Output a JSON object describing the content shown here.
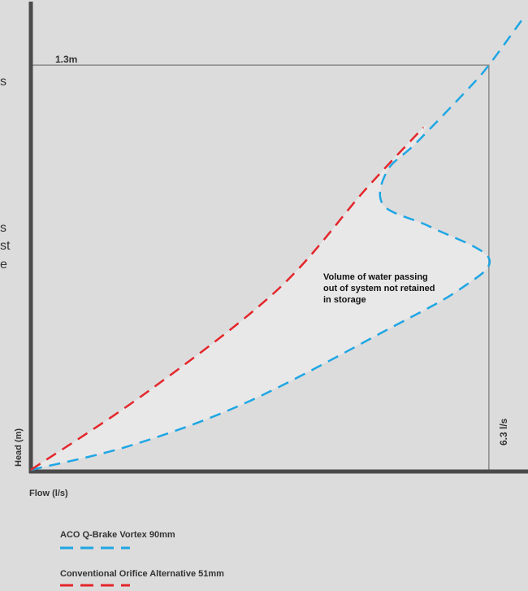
{
  "chart_data": {
    "type": "line",
    "xlabel": "Flow (l/s)",
    "ylabel": "Head (m)",
    "design_head": "1.3m",
    "design_flow": "6.3 l/s",
    "region_annotation": [
      "Volume of water passing",
      "out of system not retained",
      "in storage"
    ],
    "edge_fragments": [
      "s",
      "s",
      "st",
      "e"
    ],
    "grid": false,
    "legend_position": "bottom-left",
    "series": [
      {
        "name": "ACO Q-Brake Vortex 90mm",
        "color": "#1fa6e4",
        "style": "dashed",
        "points": [
          [
            0,
            0
          ],
          [
            1.4,
            0.08
          ],
          [
            3.0,
            0.22
          ],
          [
            4.9,
            0.45
          ],
          [
            5.9,
            0.58
          ],
          [
            6.3,
            0.68
          ],
          [
            5.5,
            0.78
          ],
          [
            4.85,
            0.85
          ],
          [
            4.9,
            0.96
          ],
          [
            5.3,
            1.05
          ],
          [
            6.0,
            1.22
          ],
          [
            6.3,
            1.3
          ],
          [
            6.8,
            1.46
          ]
        ]
      },
      {
        "name": "Conventional Orifice Alternative 51mm",
        "color": "#e4262b",
        "style": "dashed",
        "points": [
          [
            0,
            0
          ],
          [
            1.6,
            0.25
          ],
          [
            3.4,
            0.58
          ],
          [
            4.6,
            0.9
          ],
          [
            5.4,
            1.1
          ]
        ]
      }
    ]
  },
  "colors": {
    "background": "#dcdcdc",
    "axis": "#4a4a4a",
    "box": "#8a8a8a",
    "fill": "#e8e8e8",
    "text": "#333333"
  }
}
